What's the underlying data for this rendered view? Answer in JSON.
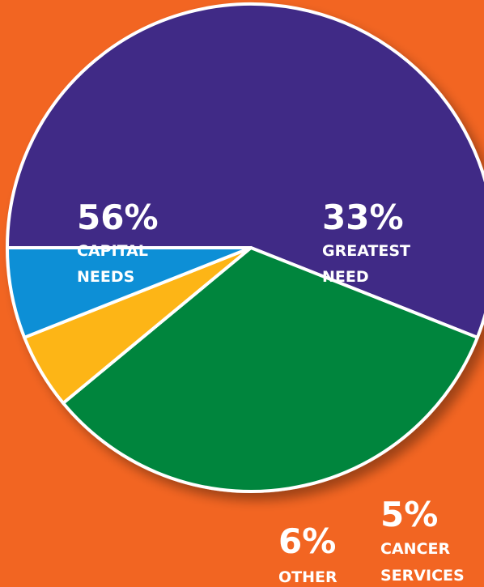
{
  "chart_data": {
    "type": "pie",
    "slices": [
      {
        "value": 56,
        "pct_label": "56%",
        "label_lines": [
          "CAPITAL",
          "NEEDS"
        ],
        "color": "#3f2a86"
      },
      {
        "value": 33,
        "pct_label": "33%",
        "label_lines": [
          "GREATEST",
          "NEED"
        ],
        "color": "#00853e"
      },
      {
        "value": 5,
        "pct_label": "5%",
        "label_lines": [
          "CANCER",
          "SERVICES"
        ],
        "color": "#fdb515"
      },
      {
        "value": 6,
        "pct_label": "6%",
        "label_lines": [
          "OTHER"
        ],
        "color": "#0a8fd6"
      }
    ],
    "start_angle_deg": 180,
    "direction": "clockwise",
    "background_color": "#f26522",
    "stroke_color": "#ffffff"
  }
}
